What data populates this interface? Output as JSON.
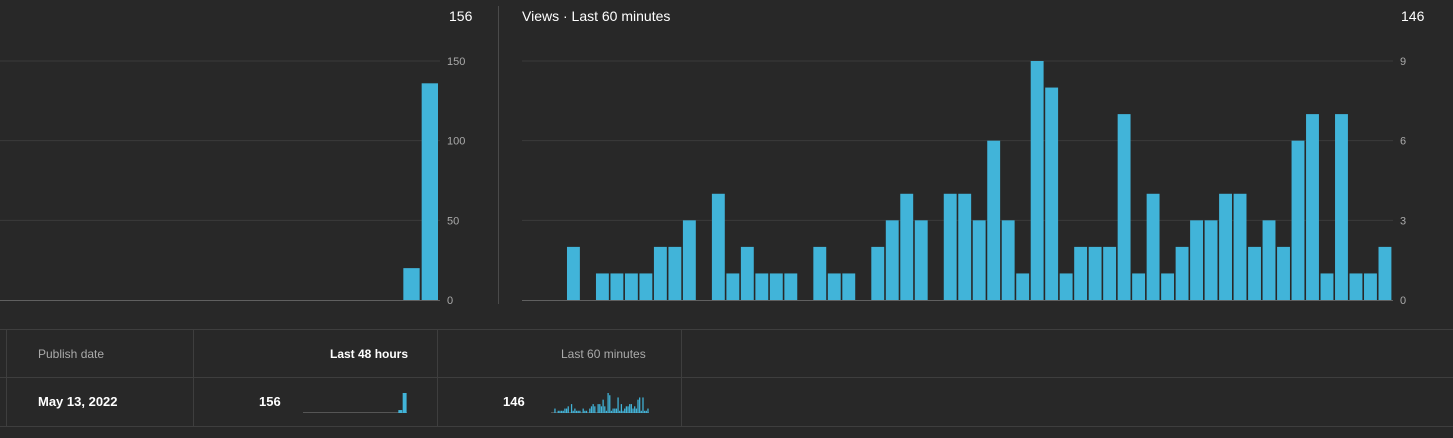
{
  "colors": {
    "bar": "#41b4d9",
    "grid": "#3a3a3a",
    "axis": "#606060",
    "tick": "#aaaaaa",
    "background": "#282828"
  },
  "left_chart": {
    "total": "156"
  },
  "right_chart": {
    "title": "Views · Last 60 minutes",
    "total": "146"
  },
  "chart_data": [
    {
      "type": "bar",
      "title": "",
      "total": 156,
      "ylim": [
        0,
        150
      ],
      "yticks": [
        0,
        50,
        100,
        150
      ],
      "grid": true,
      "y_axis_side": "right",
      "values": [
        0,
        0,
        0,
        0,
        0,
        0,
        0,
        0,
        0,
        0,
        0,
        0,
        0,
        0,
        0,
        0,
        0,
        0,
        0,
        0,
        0,
        0,
        20,
        136
      ]
    },
    {
      "type": "bar",
      "title": "Views · Last 60 minutes",
      "total": 146,
      "ylim": [
        0,
        9
      ],
      "yticks": [
        0,
        3,
        6,
        9
      ],
      "grid": true,
      "y_axis_side": "right",
      "values": [
        0,
        0,
        2,
        0,
        1,
        1,
        1,
        1,
        2,
        2,
        3,
        0,
        4,
        1,
        2,
        1,
        1,
        1,
        0,
        2,
        1,
        1,
        0,
        2,
        3,
        4,
        3,
        0,
        4,
        4,
        3,
        6,
        3,
        1,
        9,
        8,
        1,
        2,
        2,
        2,
        7,
        1,
        4,
        1,
        2,
        3,
        3,
        4,
        4,
        2,
        3,
        2,
        6,
        7,
        1,
        7,
        1,
        1,
        2
      ]
    }
  ],
  "table": {
    "headers": {
      "publish_date": "Publish date",
      "last_48_hours": "Last 48 hours",
      "last_60_minutes": "Last 60 minutes"
    },
    "row": {
      "publish_date": "May 13, 2022",
      "last_48_hours": "156",
      "last_60_minutes": "146"
    }
  }
}
